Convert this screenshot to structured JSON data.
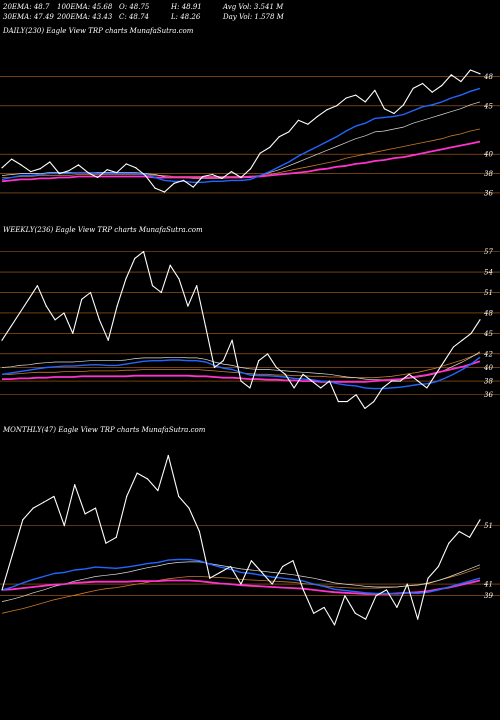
{
  "header": {
    "stats": [
      {
        "key": "20EMA",
        "text": "20EMA: 48.7"
      },
      {
        "key": "100EMA",
        "text": "100EMA: 45.68"
      },
      {
        "key": "O",
        "text": "O: 48.75"
      },
      {
        "key": "H",
        "text": "H: 48.91"
      },
      {
        "key": "AvgVol",
        "text": "Avg Vol: 3.541 M"
      },
      {
        "key": "30EMA",
        "text": "30EMA: 47.49"
      },
      {
        "key": "200EMA",
        "text": "200EMA: 43.43"
      },
      {
        "key": "C",
        "text": "C: 48.74"
      },
      {
        "key": "L",
        "text": "L: 48.26"
      },
      {
        "key": "DayVol",
        "text": "Day Vol: 1.578  M"
      }
    ]
  },
  "panels": {
    "daily": {
      "title": "DAILY(230) Eagle  View  TRP charts MunafaSutra.com"
    },
    "weekly": {
      "title": "WEEKLY(236) Eagle  View  TRP charts MunafaSutra.com"
    },
    "monthly": {
      "title": "MONTHLY(47) Eagle  View  TRP charts MunafaSutra.com"
    }
  },
  "colors": {
    "background": "#000000",
    "grid": "#b5651d",
    "price": "#ffffff",
    "ema_blue": "#2266ff",
    "ema_magenta": "#ff33cc",
    "ema_brown": "#c8782a",
    "ema_light": "#dddddd"
  },
  "chart_data": [
    {
      "type": "line",
      "name": "DAILY(230)",
      "yticks": [
        48,
        45,
        40,
        38,
        36
      ],
      "ylim": [
        33,
        52
      ],
      "series": [
        {
          "role": "price",
          "values": [
            38.6,
            39.5,
            38.9,
            38.2,
            38.5,
            39.2,
            38.0,
            38.3,
            38.9,
            38.1,
            37.6,
            38.4,
            38.1,
            39.0,
            38.6,
            37.8,
            36.5,
            36.1,
            37.0,
            37.3,
            36.6,
            37.7,
            37.9,
            37.5,
            38.2,
            37.6,
            38.5,
            40.1,
            40.7,
            41.8,
            42.3,
            43.5,
            43.1,
            43.9,
            44.6,
            45.0,
            45.8,
            46.1,
            45.4,
            46.6,
            44.7,
            44.2,
            45.1,
            46.8,
            47.3,
            46.4,
            47.1,
            48.2,
            47.5,
            48.7,
            48.3
          ]
        },
        {
          "role": "ema-blue",
          "values": [
            37.4,
            37.6,
            37.8,
            37.8,
            37.9,
            38.0,
            38.0,
            38.0,
            38.1,
            38.1,
            38.0,
            38.0,
            38.0,
            38.0,
            38.0,
            37.9,
            37.6,
            37.3,
            37.2,
            37.2,
            37.1,
            37.1,
            37.2,
            37.2,
            37.3,
            37.3,
            37.4,
            37.8,
            38.2,
            38.7,
            39.2,
            39.8,
            40.3,
            40.8,
            41.3,
            41.8,
            42.4,
            42.9,
            43.2,
            43.7,
            43.8,
            43.9,
            44.1,
            44.5,
            44.9,
            45.1,
            45.4,
            45.8,
            46.1,
            46.5,
            46.8
          ]
        },
        {
          "role": "ema-light",
          "values": [
            37.8,
            37.9,
            38.0,
            38.0,
            38.0,
            38.1,
            38.1,
            38.1,
            38.1,
            38.1,
            38.1,
            38.1,
            38.1,
            38.1,
            38.1,
            38.0,
            37.9,
            37.7,
            37.6,
            37.6,
            37.5,
            37.5,
            37.5,
            37.5,
            37.6,
            37.6,
            37.6,
            37.8,
            38.1,
            38.4,
            38.8,
            39.2,
            39.6,
            40.0,
            40.4,
            40.8,
            41.2,
            41.6,
            41.9,
            42.3,
            42.4,
            42.6,
            42.8,
            43.2,
            43.5,
            43.8,
            44.1,
            44.4,
            44.7,
            45.1,
            45.4
          ]
        },
        {
          "role": "ema-brown",
          "values": [
            37.6,
            37.6,
            37.7,
            37.7,
            37.8,
            37.8,
            37.8,
            37.8,
            37.9,
            37.9,
            37.9,
            37.9,
            37.9,
            37.9,
            37.9,
            37.9,
            37.8,
            37.8,
            37.7,
            37.7,
            37.7,
            37.7,
            37.7,
            37.7,
            37.7,
            37.7,
            37.7,
            37.8,
            37.9,
            38.1,
            38.3,
            38.5,
            38.7,
            38.9,
            39.1,
            39.3,
            39.6,
            39.8,
            40.0,
            40.2,
            40.4,
            40.6,
            40.8,
            41.0,
            41.2,
            41.4,
            41.6,
            41.9,
            42.1,
            42.4,
            42.6
          ]
        },
        {
          "role": "ema-magenta",
          "values": [
            37.2,
            37.3,
            37.4,
            37.4,
            37.5,
            37.5,
            37.6,
            37.6,
            37.7,
            37.7,
            37.7,
            37.7,
            37.7,
            37.7,
            37.7,
            37.7,
            37.6,
            37.6,
            37.6,
            37.6,
            37.6,
            37.6,
            37.6,
            37.6,
            37.6,
            37.6,
            37.7,
            37.7,
            37.8,
            37.9,
            38.0,
            38.1,
            38.2,
            38.4,
            38.5,
            38.7,
            38.8,
            39.0,
            39.1,
            39.3,
            39.4,
            39.6,
            39.7,
            39.9,
            40.1,
            40.3,
            40.5,
            40.7,
            40.9,
            41.1,
            41.3
          ]
        }
      ]
    },
    {
      "type": "line",
      "name": "WEEKLY(236)",
      "yticks": [
        57,
        54,
        51,
        48,
        45,
        42,
        40,
        38,
        36
      ],
      "ylim": [
        32,
        59
      ],
      "series": [
        {
          "role": "price",
          "values": [
            44,
            46,
            48,
            50,
            52,
            49,
            47,
            48,
            45,
            50,
            51,
            47,
            44,
            49,
            53,
            56,
            57,
            52,
            51,
            55,
            53,
            49,
            52,
            46,
            40,
            41,
            44,
            38,
            37,
            41,
            42,
            40,
            39,
            37,
            39,
            38,
            37,
            38,
            35,
            35,
            36,
            34,
            35,
            37,
            38,
            38,
            39,
            38,
            37,
            39,
            41,
            43,
            44,
            45,
            47
          ]
        },
        {
          "role": "ema-blue",
          "values": [
            39,
            39.2,
            39.4,
            39.6,
            39.8,
            40,
            40.1,
            40.2,
            40.2,
            40.3,
            40.4,
            40.4,
            40.3,
            40.3,
            40.5,
            40.7,
            40.9,
            41,
            41,
            41.1,
            41.1,
            41,
            41,
            40.8,
            40.3,
            39.9,
            39.7,
            39.3,
            38.9,
            38.8,
            38.8,
            38.7,
            38.6,
            38.4,
            38.3,
            38.2,
            38,
            37.9,
            37.6,
            37.4,
            37.3,
            37,
            36.9,
            36.9,
            37,
            37.1,
            37.3,
            37.5,
            37.6,
            37.9,
            38.4,
            39,
            39.7,
            40.5,
            41.5
          ]
        },
        {
          "role": "ema-light",
          "values": [
            40,
            40.1,
            40.3,
            40.4,
            40.6,
            40.7,
            40.8,
            40.8,
            40.8,
            40.9,
            41,
            41,
            41,
            41,
            41.1,
            41.3,
            41.4,
            41.4,
            41.4,
            41.5,
            41.5,
            41.4,
            41.4,
            41.2,
            40.8,
            40.5,
            40.3,
            40,
            39.8,
            39.7,
            39.7,
            39.6,
            39.5,
            39.4,
            39.3,
            39.2,
            39.1,
            39,
            38.8,
            38.6,
            38.5,
            38.3,
            38.2,
            38.2,
            38.2,
            38.3,
            38.4,
            38.6,
            38.8,
            39.1,
            39.6,
            40.2,
            40.8,
            41.5,
            42.3
          ]
        },
        {
          "role": "ema-brown",
          "values": [
            39,
            39,
            39.1,
            39.2,
            39.3,
            39.3,
            39.3,
            39.4,
            39.4,
            39.4,
            39.5,
            39.5,
            39.5,
            39.5,
            39.6,
            39.6,
            39.7,
            39.7,
            39.7,
            39.7,
            39.7,
            39.7,
            39.7,
            39.6,
            39.5,
            39.4,
            39.3,
            39.2,
            39.1,
            39,
            39,
            38.9,
            38.9,
            38.8,
            38.8,
            38.7,
            38.7,
            38.6,
            38.6,
            38.5,
            38.5,
            38.5,
            38.5,
            38.6,
            38.7,
            38.9,
            39.1,
            39.3,
            39.6,
            39.9,
            40.3,
            40.7,
            41.1,
            41.6,
            42.1
          ]
        },
        {
          "role": "ema-magenta",
          "values": [
            38.3,
            38.3,
            38.4,
            38.4,
            38.5,
            38.5,
            38.6,
            38.6,
            38.6,
            38.7,
            38.7,
            38.7,
            38.7,
            38.7,
            38.7,
            38.8,
            38.8,
            38.8,
            38.8,
            38.8,
            38.8,
            38.8,
            38.7,
            38.7,
            38.6,
            38.5,
            38.5,
            38.4,
            38.3,
            38.3,
            38.2,
            38.2,
            38.1,
            38.1,
            38,
            38,
            37.9,
            37.9,
            37.9,
            37.9,
            37.9,
            37.9,
            38,
            38.1,
            38.2,
            38.3,
            38.5,
            38.7,
            38.9,
            39.2,
            39.5,
            39.8,
            40.1,
            40.5,
            40.9
          ]
        }
      ]
    },
    {
      "type": "line",
      "name": "MONTHLY(47)",
      "yticks": [
        51,
        41,
        39
      ],
      "ylim": [
        28,
        66
      ],
      "series": [
        {
          "role": "price",
          "values": [
            40,
            46,
            52,
            54,
            55,
            56,
            51,
            58,
            53,
            54,
            48,
            49,
            56,
            60,
            59,
            57,
            63,
            56,
            54,
            50,
            42,
            43,
            44,
            41,
            45,
            43,
            41,
            44,
            45,
            40,
            36,
            37,
            34,
            39,
            36,
            35,
            39,
            40,
            37,
            41,
            35,
            42,
            44,
            48,
            50,
            49,
            52
          ]
        },
        {
          "role": "ema-blue",
          "values": [
            40,
            40.5,
            41.2,
            41.8,
            42.3,
            42.8,
            43,
            43.4,
            43.6,
            43.9,
            43.8,
            43.7,
            43.9,
            44.2,
            44.5,
            44.7,
            45.1,
            45.2,
            45.2,
            45,
            44.4,
            43.9,
            43.5,
            43,
            42.8,
            42.5,
            42.2,
            42,
            41.8,
            41.5,
            41,
            40.6,
            40.1,
            39.9,
            39.7,
            39.5,
            39.4,
            39.4,
            39.3,
            39.5,
            39.4,
            39.6,
            40,
            40.5,
            41,
            41.5,
            42
          ]
        },
        {
          "role": "ema-light",
          "values": [
            38,
            38.4,
            38.9,
            39.5,
            40,
            40.6,
            41,
            41.5,
            41.9,
            42.3,
            42.5,
            42.7,
            43,
            43.4,
            43.8,
            44.1,
            44.5,
            44.7,
            44.8,
            44.8,
            44.5,
            44.2,
            43.9,
            43.6,
            43.4,
            43.2,
            43,
            42.8,
            42.6,
            42.3,
            42,
            41.6,
            41.2,
            41,
            40.8,
            40.6,
            40.5,
            40.5,
            40.5,
            40.7,
            40.8,
            41.1,
            41.6,
            42.2,
            42.9,
            43.6,
            44.3
          ]
        },
        {
          "role": "ema-brown",
          "values": [
            36,
            36.4,
            36.8,
            37.3,
            37.8,
            38.3,
            38.7,
            39.1,
            39.5,
            39.9,
            40.2,
            40.4,
            40.7,
            41,
            41.3,
            41.6,
            41.9,
            42.1,
            42.3,
            42.3,
            42.2,
            42.1,
            42,
            41.8,
            41.7,
            41.6,
            41.5,
            41.4,
            41.3,
            41.1,
            40.9,
            40.7,
            40.5,
            40.4,
            40.3,
            40.3,
            40.3,
            40.4,
            40.5,
            40.7,
            40.9,
            41.2,
            41.6,
            42.1,
            42.6,
            43.2,
            43.8
          ]
        },
        {
          "role": "ema-magenta",
          "values": [
            40,
            40.1,
            40.3,
            40.5,
            40.7,
            40.9,
            41,
            41.2,
            41.3,
            41.4,
            41.4,
            41.4,
            41.4,
            41.5,
            41.5,
            41.5,
            41.6,
            41.6,
            41.6,
            41.5,
            41.3,
            41.1,
            41,
            40.8,
            40.7,
            40.6,
            40.5,
            40.4,
            40.3,
            40.2,
            40,
            39.8,
            39.6,
            39.5,
            39.4,
            39.3,
            39.3,
            39.3,
            39.4,
            39.5,
            39.6,
            39.8,
            40.1,
            40.4,
            40.8,
            41.2,
            41.6
          ]
        }
      ]
    }
  ]
}
